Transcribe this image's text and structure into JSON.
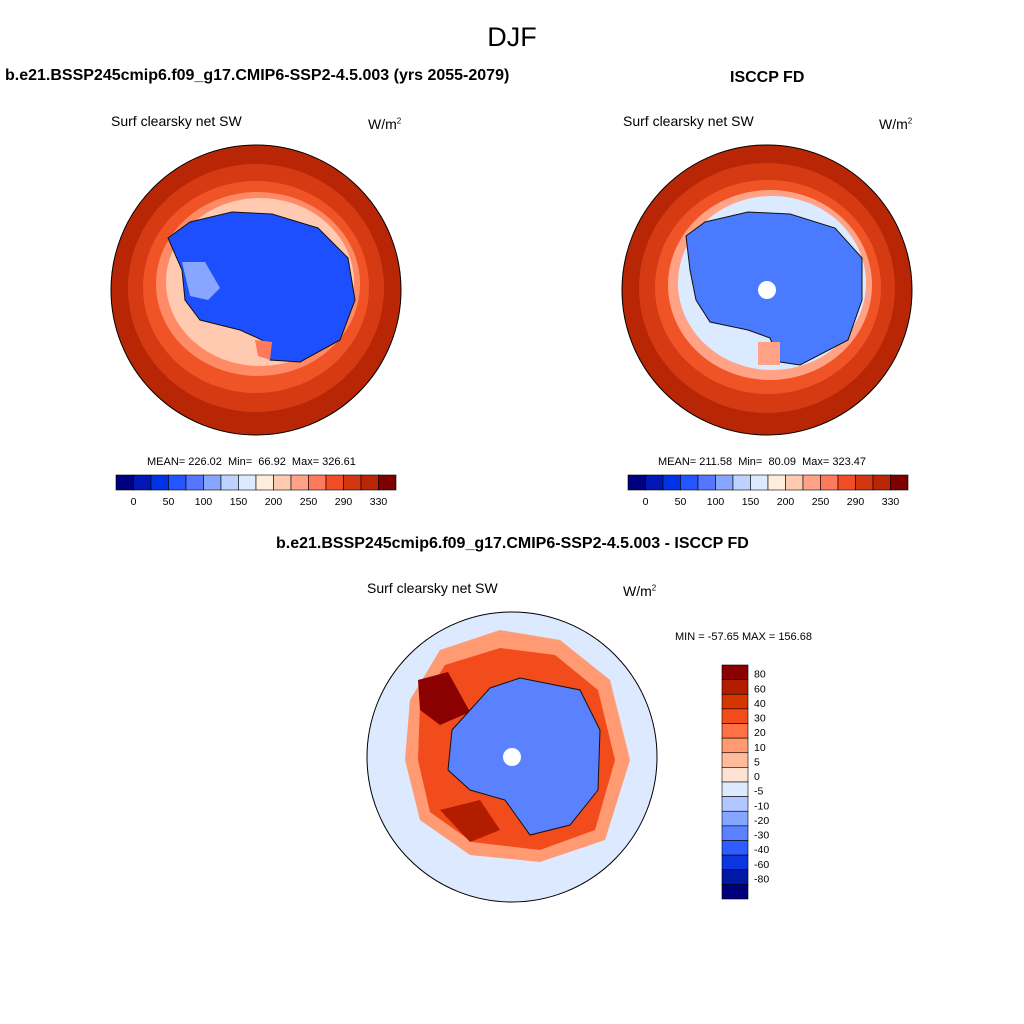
{
  "figure": {
    "title": "DJF"
  },
  "chart_data": [
    {
      "type": "heatmap",
      "projection": "south-polar-stereographic",
      "title": "b.e21.BSSP245cmip6.f09_g17.CMIP6-SSP2-4.5.003 (yrs 2055-2079)",
      "variable": "Surf clearsky net SW",
      "units_base": "W/m",
      "units_exp": "2",
      "stats_text": "MEAN= 226.02  Min=  66.92  Max= 326.61",
      "stats": {
        "mean": 226.02,
        "min": 66.92,
        "max": 326.61
      },
      "colorbar": {
        "orientation": "horizontal",
        "tick_labels": [
          "0",
          "50",
          "100",
          "150",
          "200",
          "250",
          "290",
          "330"
        ],
        "colors": [
          "#00007f",
          "#0019b3",
          "#0033e6",
          "#2455ff",
          "#5577ff",
          "#88a6ff",
          "#bcd2ff",
          "#dceaff",
          "#ffeddc",
          "#ffcab0",
          "#ffa285",
          "#ff7a5c",
          "#f04e26",
          "#d23714",
          "#b82606",
          "#7f0000"
        ]
      },
      "regions": {
        "ocean": "#b82606",
        "antarctica": "#1e4fff",
        "sea_ice_edge": "#ffd6c5"
      }
    },
    {
      "type": "heatmap",
      "projection": "south-polar-stereographic",
      "title": "ISCCP FD",
      "variable": "Surf clearsky net SW",
      "units_base": "W/m",
      "units_exp": "2",
      "stats_text": "MEAN= 211.58  Min=  80.09  Max= 323.47",
      "stats": {
        "mean": 211.58,
        "min": 80.09,
        "max": 323.47
      },
      "colorbar": {
        "orientation": "horizontal",
        "tick_labels": [
          "0",
          "50",
          "100",
          "150",
          "200",
          "250",
          "290",
          "330"
        ],
        "colors": [
          "#00007f",
          "#0019b3",
          "#0033e6",
          "#2455ff",
          "#5577ff",
          "#88a6ff",
          "#bcd2ff",
          "#dceaff",
          "#ffeddc",
          "#ffcab0",
          "#ffa285",
          "#ff7a5c",
          "#f04e26",
          "#d23714",
          "#b82606",
          "#7f0000"
        ]
      },
      "regions": {
        "ocean": "#b82606",
        "antarctica": "#4a7bff",
        "sea_ice_edge": "#dfe9ff"
      }
    },
    {
      "type": "heatmap",
      "projection": "south-polar-stereographic",
      "title": "b.e21.BSSP245cmip6.f09_g17.CMIP6-SSP2-4.5.003 - ISCCP FD",
      "variable": "Surf clearsky net SW",
      "units_base": "W/m",
      "units_exp": "2",
      "stats_text": "MIN = -57.65 MAX = 156.68",
      "stats": {
        "min": -57.65,
        "max": 156.68
      },
      "colorbar": {
        "orientation": "vertical",
        "tick_labels": [
          "80",
          "60",
          "40",
          "30",
          "20",
          "10",
          "5",
          "0",
          "-5",
          "-10",
          "-20",
          "-30",
          "-40",
          "-60",
          "-80"
        ],
        "colors": [
          "#8b0000",
          "#b21d00",
          "#d63500",
          "#f24c1c",
          "#ff7045",
          "#ff9a73",
          "#ffbc9d",
          "#ffe2d2",
          "#dce9ff",
          "#b0c8ff",
          "#85a6ff",
          "#5a82ff",
          "#2e5cff",
          "#0b35e0",
          "#0018a6",
          "#00007f"
        ]
      },
      "regions": {
        "ocean": "#dce9ff",
        "antarctica": "#5a82ff"
      }
    }
  ]
}
